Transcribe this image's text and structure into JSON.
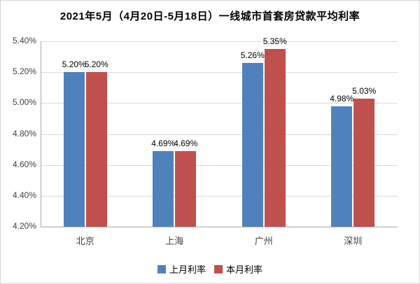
{
  "chart_data": {
    "type": "bar",
    "title": "2021年5月（4月20日-5月18日）一线城市首套房贷款平均利率",
    "categories": [
      "北京",
      "上海",
      "广州",
      "深圳"
    ],
    "series": [
      {
        "name": "上月利率",
        "color": "#4F81BD",
        "values": [
          5.2,
          4.69,
          5.26,
          4.98
        ]
      },
      {
        "name": "本月利率",
        "color": "#C0504D",
        "values": [
          5.2,
          4.69,
          5.35,
          5.03
        ]
      }
    ],
    "ylim": [
      4.2,
      5.4
    ],
    "yticks": [
      4.2,
      4.4,
      4.6,
      4.8,
      5.0,
      5.2,
      5.4
    ],
    "ytick_labels": [
      "4.20%",
      "4.40%",
      "4.60%",
      "4.80%",
      "5.00%",
      "5.20%",
      "5.40%"
    ],
    "data_labels": [
      "5.20%",
      "5.20%",
      "4.69%",
      "4.69%",
      "5.26%",
      "5.35%",
      "4.98%",
      "5.03%"
    ],
    "grid": true,
    "legend_position": "bottom",
    "xlabel": "",
    "ylabel": ""
  }
}
